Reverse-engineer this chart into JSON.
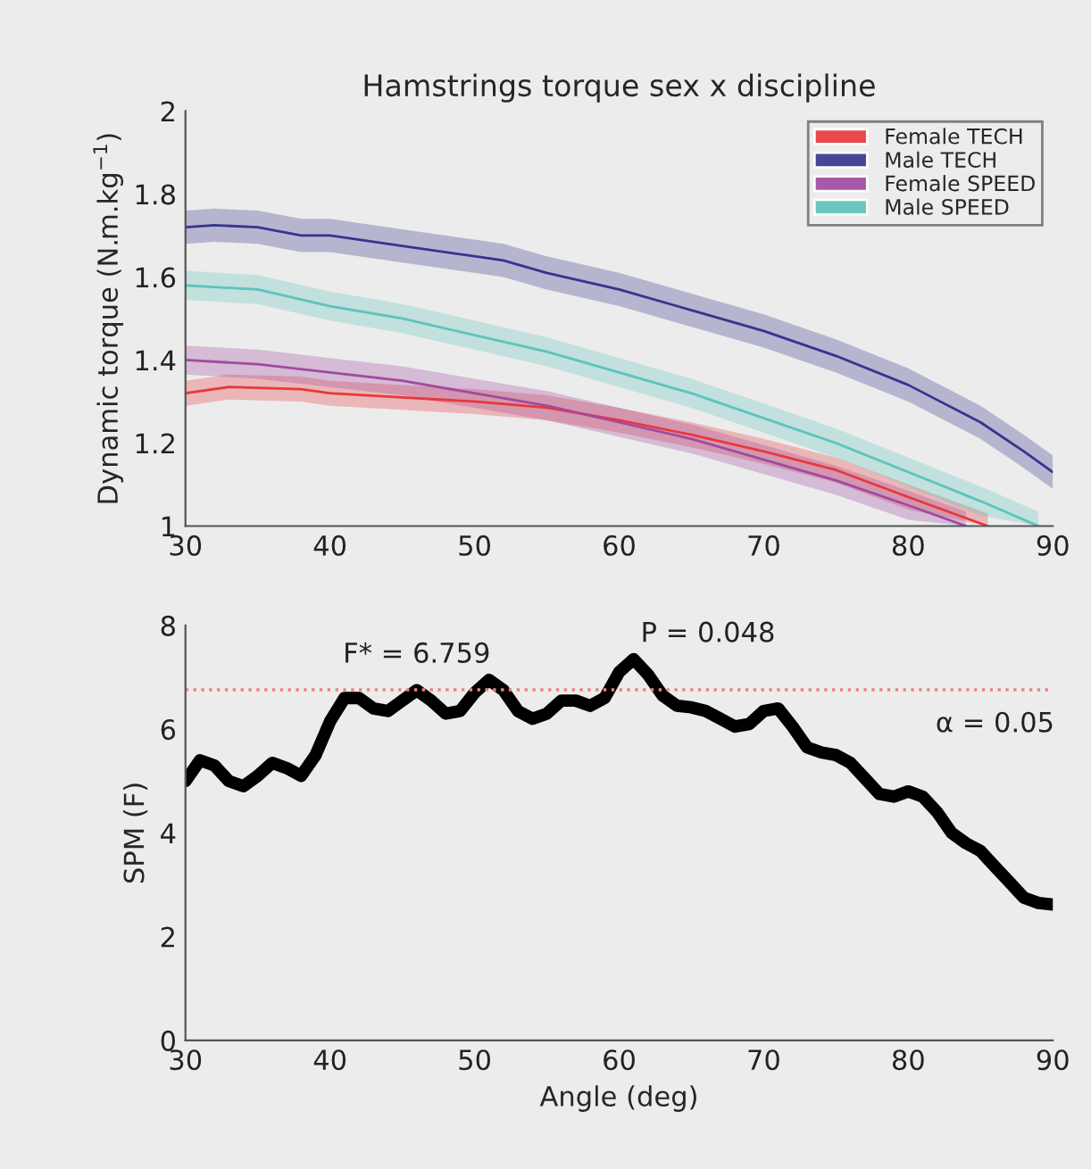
{
  "chart_data": [
    {
      "type": "line",
      "title": "Hamstrings torque sex x discipline",
      "ylabel": "Dynamic torque (N.m.kg$^{−1}$)",
      "xlim": [
        30,
        90
      ],
      "ylim": [
        1,
        2
      ],
      "xticks": [
        30,
        40,
        50,
        60,
        70,
        80,
        90
      ],
      "yticks": [
        1,
        1.2,
        1.4,
        1.6,
        1.8,
        2
      ],
      "legend": "top right",
      "grid": false,
      "series": [
        {
          "name": "Female TECH",
          "color": "#e8383a",
          "x": [
            30,
            33,
            38,
            40,
            45,
            50,
            55,
            60,
            65,
            70,
            75,
            80,
            85.5
          ],
          "values": [
            1.32,
            1.335,
            1.33,
            1.32,
            1.31,
            1.3,
            1.285,
            1.255,
            1.22,
            1.18,
            1.135,
            1.07,
            1.0
          ],
          "lower": [
            1.29,
            1.305,
            1.3,
            1.29,
            1.28,
            1.27,
            1.255,
            1.225,
            1.19,
            1.15,
            1.105,
            1.04,
            1.0
          ],
          "upper": [
            1.35,
            1.365,
            1.36,
            1.35,
            1.34,
            1.33,
            1.315,
            1.285,
            1.25,
            1.21,
            1.165,
            1.1,
            1.03
          ]
        },
        {
          "name": "Male TECH",
          "color": "#35358f",
          "x": [
            30,
            32,
            35,
            38,
            40,
            45,
            50,
            52,
            55,
            60,
            65,
            70,
            75,
            80,
            85,
            88,
            90
          ],
          "values": [
            1.72,
            1.725,
            1.72,
            1.7,
            1.7,
            1.675,
            1.65,
            1.64,
            1.61,
            1.57,
            1.52,
            1.47,
            1.41,
            1.34,
            1.25,
            1.18,
            1.13
          ],
          "lower": [
            1.68,
            1.685,
            1.68,
            1.66,
            1.66,
            1.635,
            1.61,
            1.6,
            1.57,
            1.53,
            1.48,
            1.43,
            1.37,
            1.3,
            1.21,
            1.14,
            1.09
          ],
          "upper": [
            1.76,
            1.765,
            1.76,
            1.74,
            1.74,
            1.715,
            1.69,
            1.68,
            1.65,
            1.61,
            1.56,
            1.51,
            1.45,
            1.38,
            1.29,
            1.22,
            1.17
          ]
        },
        {
          "name": "Female SPEED",
          "color": "#a04aa0",
          "x": [
            30,
            35,
            40,
            45,
            50,
            55,
            60,
            65,
            70,
            75,
            80,
            84
          ],
          "values": [
            1.4,
            1.39,
            1.37,
            1.35,
            1.32,
            1.29,
            1.25,
            1.21,
            1.16,
            1.11,
            1.05,
            1.0
          ],
          "lower": [
            1.365,
            1.355,
            1.335,
            1.315,
            1.285,
            1.255,
            1.215,
            1.175,
            1.125,
            1.075,
            1.015,
            1.0
          ],
          "upper": [
            1.435,
            1.425,
            1.405,
            1.385,
            1.355,
            1.325,
            1.285,
            1.245,
            1.195,
            1.145,
            1.085,
            1.035
          ]
        },
        {
          "name": "Male SPEED",
          "color": "#5cc4bc",
          "x": [
            30,
            35,
            40,
            45,
            50,
            55,
            60,
            65,
            70,
            75,
            80,
            85,
            89
          ],
          "values": [
            1.58,
            1.57,
            1.53,
            1.5,
            1.46,
            1.42,
            1.37,
            1.32,
            1.26,
            1.2,
            1.13,
            1.06,
            1.0
          ],
          "lower": [
            1.545,
            1.535,
            1.495,
            1.465,
            1.425,
            1.385,
            1.335,
            1.285,
            1.225,
            1.165,
            1.095,
            1.025,
            1.0
          ],
          "upper": [
            1.615,
            1.605,
            1.565,
            1.535,
            1.495,
            1.455,
            1.405,
            1.355,
            1.295,
            1.235,
            1.165,
            1.095,
            1.035
          ]
        }
      ]
    },
    {
      "type": "line",
      "xlabel": "Angle (deg)",
      "ylabel": "SPM (F)",
      "xlim": [
        30,
        90
      ],
      "ylim": [
        0,
        8
      ],
      "xticks": [
        30,
        40,
        50,
        60,
        70,
        80,
        90
      ],
      "yticks": [
        0,
        2,
        4,
        6,
        8
      ],
      "grid": false,
      "legend": false,
      "x": [
        30,
        31,
        32,
        33,
        34,
        35,
        36,
        37,
        38,
        39,
        40,
        41,
        42,
        43,
        44,
        45,
        46,
        47,
        48,
        49,
        50,
        51,
        52,
        53,
        54,
        55,
        56,
        57,
        58,
        59,
        60,
        61,
        62,
        63,
        64,
        65,
        66,
        67,
        68,
        69,
        70,
        71,
        72,
        73,
        74,
        75,
        76,
        77,
        78,
        79,
        80,
        81,
        82,
        83,
        84,
        85,
        86,
        87,
        88,
        89,
        90
      ],
      "series": [
        {
          "color": "#000000",
          "values": [
            5.0,
            5.4,
            5.3,
            5.0,
            4.9,
            5.1,
            5.35,
            5.25,
            5.1,
            5.5,
            6.15,
            6.6,
            6.6,
            6.4,
            6.35,
            6.55,
            6.75,
            6.55,
            6.3,
            6.35,
            6.7,
            6.95,
            6.75,
            6.35,
            6.2,
            6.3,
            6.55,
            6.55,
            6.45,
            6.6,
            7.1,
            7.35,
            7.05,
            6.65,
            6.45,
            6.42,
            6.35,
            6.2,
            6.05,
            6.1,
            6.35,
            6.4,
            6.05,
            5.65,
            5.55,
            5.5,
            5.35,
            5.05,
            4.75,
            4.7,
            4.8,
            4.7,
            4.4,
            4.0,
            3.8,
            3.65,
            3.35,
            3.05,
            2.75,
            2.65,
            2.62
          ]
        }
      ],
      "ref_lines": [
        {
          "axis": "y",
          "value": 6.759,
          "color": "#f08080",
          "line_style": "dotted"
        }
      ],
      "annotations": [
        {
          "text": "F* = 6.759",
          "x": 46,
          "y": 6.759
        },
        {
          "text": "P = 0.048",
          "x": 61,
          "y": 7.35
        },
        {
          "text": "α = 0.05",
          "x": 86,
          "y": 6.759
        }
      ]
    }
  ]
}
